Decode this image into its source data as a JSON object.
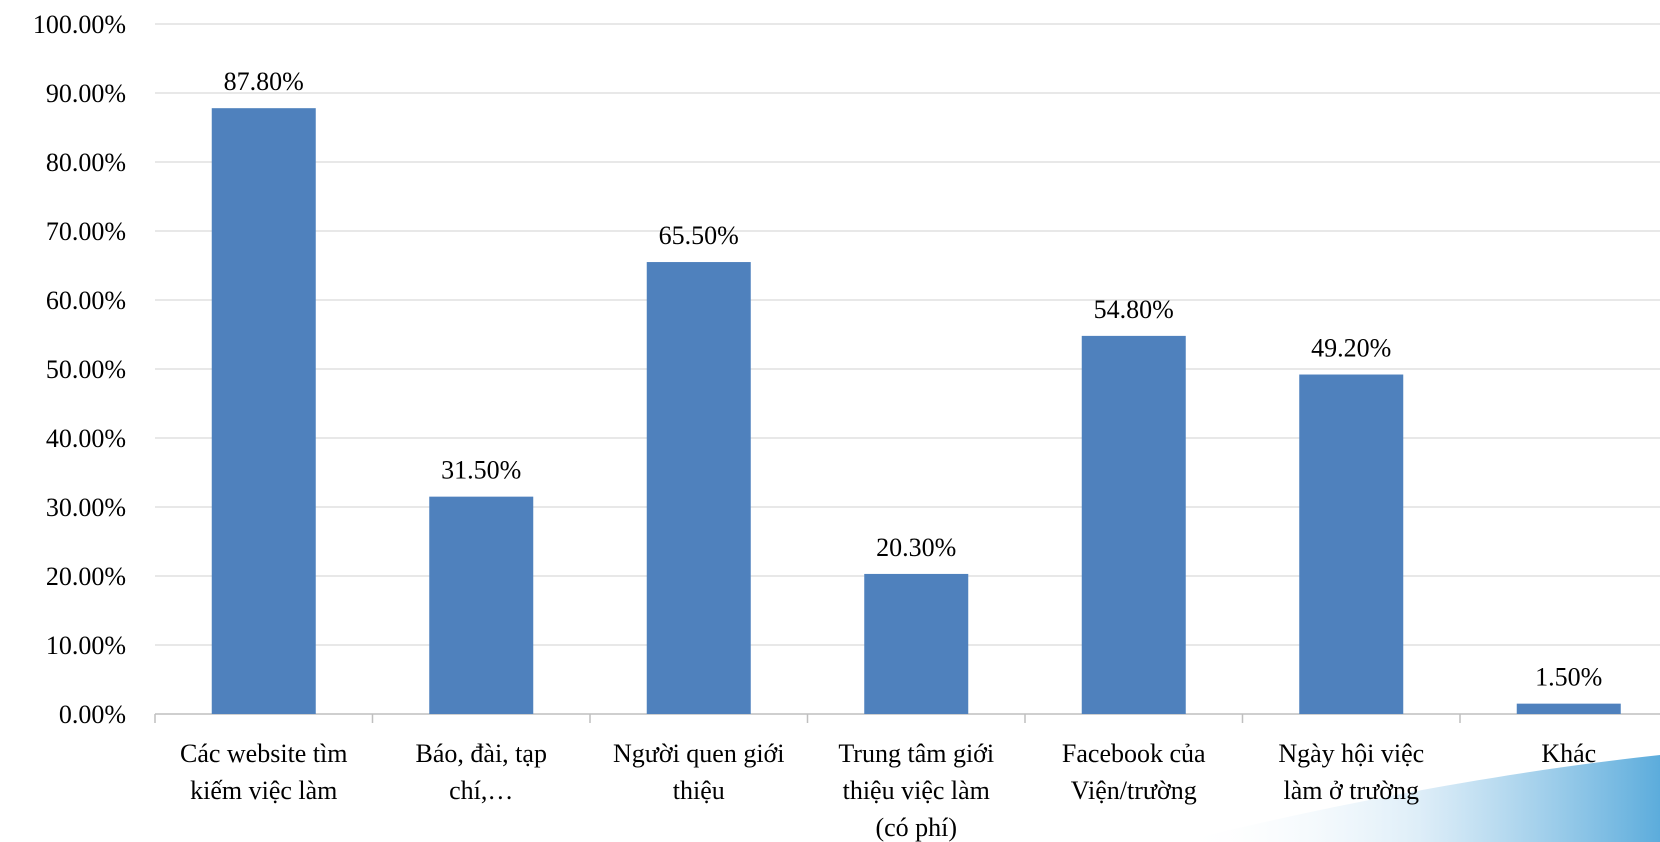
{
  "chart_data": {
    "type": "bar",
    "title": "",
    "xlabel": "",
    "ylabel": "",
    "ylim": [
      0,
      100
    ],
    "y_ticks": [
      "0.00%",
      "10.00%",
      "20.00%",
      "30.00%",
      "40.00%",
      "50.00%",
      "60.00%",
      "70.00%",
      "80.00%",
      "90.00%",
      "100.00%"
    ],
    "categories": [
      [
        "Các website tìm",
        "kiếm việc làm"
      ],
      [
        "Báo, đài, tạp",
        "chí,…"
      ],
      [
        "Người quen giới",
        "thiệu"
      ],
      [
        "Trung tâm giới",
        "thiệu việc làm",
        "(có phí)"
      ],
      [
        "Facebook của",
        "Viện/trường"
      ],
      [
        "Ngày hội việc",
        "làm ở trường"
      ],
      [
        "Khác"
      ]
    ],
    "values": [
      87.8,
      31.5,
      65.5,
      20.3,
      54.8,
      49.2,
      1.5
    ],
    "data_labels": [
      "87.80%",
      "31.50%",
      "65.50%",
      "20.30%",
      "54.80%",
      "49.20%",
      "1.50%"
    ],
    "grid": true,
    "legend": "none",
    "colors": {
      "bar": "#4f81bd",
      "grid": "#d9d9d9",
      "axis": "#bfbfbf"
    }
  }
}
